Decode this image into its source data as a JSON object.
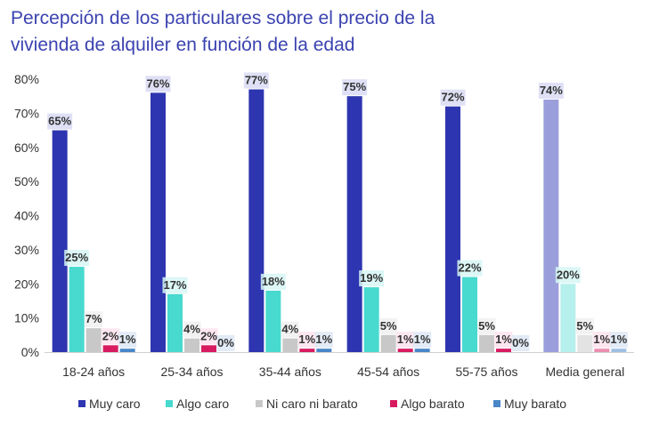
{
  "title_lines": [
    "Percepción de los particulares sobre el precio de la",
    "vivienda de alquiler en función de la edad"
  ],
  "colors": {
    "title": "#3b43b0",
    "series": [
      "#2e35b0",
      "#48d9cf",
      "#c8c8c8",
      "#d81b60",
      "#4a86c8"
    ],
    "media_series": [
      "#9a9edb",
      "#b6f0ec",
      "#e3e3e3",
      "#ec8fb0",
      "#9fc0e3"
    ],
    "label_bg": [
      "#d9dbf3",
      "#d6f6f3",
      "#f0f0f0",
      "#fbe2ec",
      "#dde8f5"
    ]
  },
  "chart_data": {
    "type": "bar",
    "title": "Percepción de los particulares sobre el precio de la vivienda de alquiler en función de la edad",
    "categories": [
      "18-24 años",
      "25-34 años",
      "35-44 años",
      "45-54 años",
      "55-75 años",
      "Media general"
    ],
    "series": [
      {
        "name": "Muy caro",
        "values": [
          65,
          76,
          77,
          75,
          72,
          74
        ]
      },
      {
        "name": "Algo caro",
        "values": [
          25,
          17,
          18,
          19,
          22,
          20
        ]
      },
      {
        "name": "Ni caro ni barato",
        "values": [
          7,
          4,
          4,
          5,
          5,
          5
        ]
      },
      {
        "name": "Algo barato",
        "values": [
          2,
          2,
          1,
          1,
          1,
          1
        ]
      },
      {
        "name": "Muy barato",
        "values": [
          1,
          0,
          1,
          1,
          0,
          1
        ]
      }
    ],
    "ylim": [
      0,
      80
    ],
    "yticks": [
      "0%",
      "10%",
      "20%",
      "30%",
      "40%",
      "50%",
      "60%",
      "70%",
      "80%"
    ],
    "value_suffix": "%",
    "grid": false,
    "legend_position": "bottom"
  }
}
